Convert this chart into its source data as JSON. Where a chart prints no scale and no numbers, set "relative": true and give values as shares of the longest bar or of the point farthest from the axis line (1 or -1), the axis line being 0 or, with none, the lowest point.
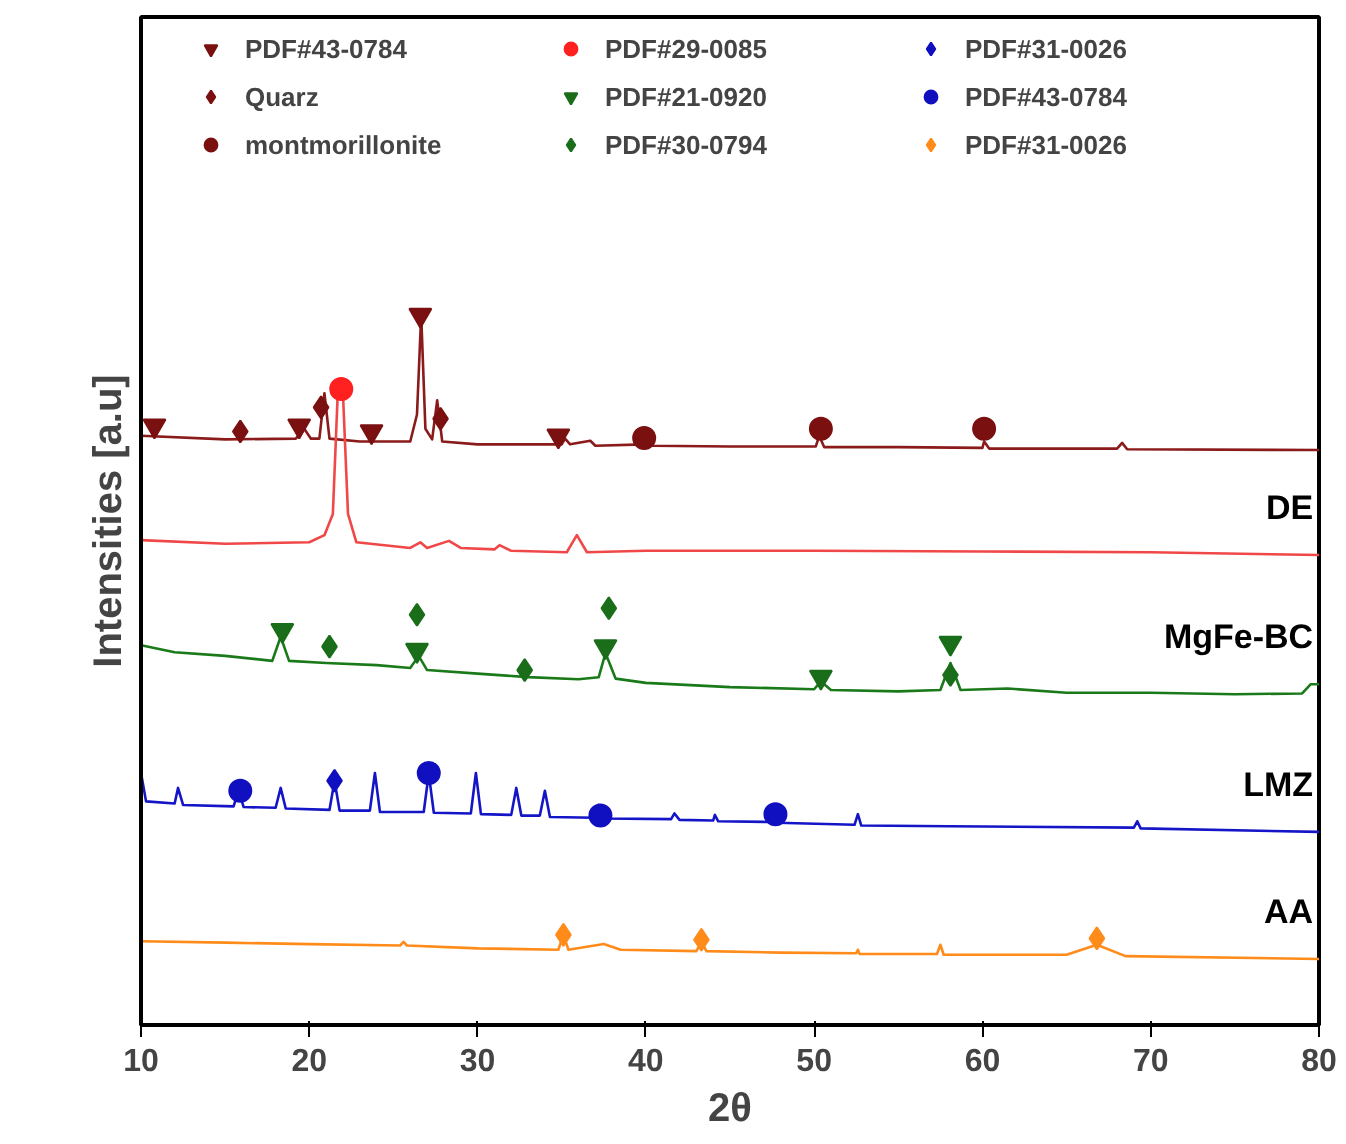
{
  "chart_data": {
    "type": "line",
    "relative": true,
    "xlabel": "2θ",
    "ylabel": "Intensities [a.u]",
    "xlim": [
      10,
      80
    ],
    "xticks": [
      10,
      20,
      30,
      40,
      50,
      60,
      70,
      80
    ],
    "grid": false,
    "legend": "top",
    "series": [
      {
        "color": "#8b1a1a",
        "x": [
          10,
          15,
          19.2,
          19.7,
          20.1,
          20.6,
          20.9,
          21.2,
          23,
          26,
          26.4,
          26.65,
          26.9,
          27.3,
          27.6,
          27.9,
          30,
          35,
          35.2,
          35.5,
          36.7,
          37,
          39.9,
          40.1,
          40.4,
          45,
          50.1,
          50.3,
          50.6,
          55,
          60,
          60.1,
          60.4,
          62,
          68,
          68.3,
          68.6,
          80
        ],
        "values": [
          0.83,
          0.825,
          0.826,
          0.84,
          0.826,
          0.826,
          0.89,
          0.826,
          0.822,
          0.822,
          0.86,
          1.0,
          0.84,
          0.825,
          0.88,
          0.822,
          0.818,
          0.818,
          0.826,
          0.818,
          0.823,
          0.816,
          0.818,
          0.835,
          0.816,
          0.815,
          0.815,
          0.83,
          0.814,
          0.814,
          0.813,
          0.822,
          0.812,
          0.812,
          0.812,
          0.82,
          0.811,
          0.81
        ]
      },
      {
        "name": "DE",
        "color": "#f04848",
        "x": [
          10,
          15,
          20,
          20.9,
          21.4,
          21.7,
          22.0,
          22.3,
          22.8,
          26,
          26.6,
          27,
          28.3,
          29,
          31,
          31.3,
          32,
          35.3,
          35.9,
          36.5,
          40,
          45,
          50,
          60,
          70,
          80
        ],
        "values": [
          0.683,
          0.678,
          0.68,
          0.69,
          0.72,
          0.895,
          0.89,
          0.72,
          0.68,
          0.672,
          0.68,
          0.672,
          0.682,
          0.672,
          0.67,
          0.676,
          0.668,
          0.666,
          0.69,
          0.666,
          0.668,
          0.668,
          0.668,
          0.667,
          0.666,
          0.662
        ]
      },
      {
        "name": "MgFe-BC",
        "color": "#1a7a1a",
        "x": [
          10,
          12,
          15,
          17.8,
          18.3,
          18.8,
          21,
          24,
          26,
          26.5,
          27,
          30,
          33,
          36,
          37.2,
          37.6,
          38.2,
          40,
          45,
          50,
          50.4,
          51,
          55,
          57.5,
          58.1,
          58.7,
          61.5,
          65,
          70,
          75,
          79,
          79.5,
          80
        ],
        "values": [
          0.535,
          0.525,
          0.52,
          0.513,
          0.547,
          0.513,
          0.51,
          0.507,
          0.503,
          0.52,
          0.5,
          0.495,
          0.49,
          0.487,
          0.49,
          0.524,
          0.488,
          0.482,
          0.476,
          0.473,
          0.484,
          0.472,
          0.47,
          0.472,
          0.51,
          0.472,
          0.474,
          0.468,
          0.468,
          0.466,
          0.467,
          0.48,
          0.48
        ]
      },
      {
        "name": "LMZ",
        "color": "#1515c8",
        "x": [
          10,
          10.3,
          12,
          12.2,
          12.5,
          15.5,
          15.8,
          16.1,
          18,
          18.3,
          18.6,
          21.2,
          21.5,
          21.8,
          23.6,
          23.9,
          24.2,
          26.8,
          27.1,
          27.4,
          29.6,
          29.9,
          30.2,
          32,
          32.3,
          32.6,
          33.7,
          34,
          34.3,
          37,
          37.2,
          37.5,
          41.5,
          41.7,
          42,
          44,
          44.1,
          44.3,
          47.4,
          47.6,
          47.8,
          52.4,
          52.6,
          52.8,
          58,
          69,
          69.2,
          69.4,
          80
        ],
        "values": [
          0.355,
          0.315,
          0.312,
          0.334,
          0.31,
          0.308,
          0.33,
          0.307,
          0.306,
          0.334,
          0.305,
          0.303,
          0.344,
          0.302,
          0.302,
          0.355,
          0.3,
          0.3,
          0.354,
          0.299,
          0.298,
          0.355,
          0.297,
          0.296,
          0.334,
          0.295,
          0.295,
          0.33,
          0.293,
          0.292,
          0.31,
          0.291,
          0.29,
          0.298,
          0.289,
          0.288,
          0.296,
          0.287,
          0.286,
          0.298,
          0.285,
          0.282,
          0.297,
          0.281,
          0.28,
          0.278,
          0.287,
          0.277,
          0.272
        ]
      },
      {
        "name": "AA",
        "color": "#ff8c1a",
        "x": [
          10,
          15,
          20,
          25.4,
          25.6,
          25.8,
          30,
          34.8,
          35.1,
          35.4,
          37.5,
          38.5,
          43,
          43.3,
          43.6,
          48,
          52.5,
          52.6,
          52.7,
          57.3,
          57.5,
          57.7,
          65,
          66.8,
          68.5,
          80
        ],
        "values": [
          0.118,
          0.116,
          0.114,
          0.112,
          0.117,
          0.112,
          0.108,
          0.106,
          0.127,
          0.106,
          0.114,
          0.106,
          0.104,
          0.117,
          0.104,
          0.102,
          0.101,
          0.106,
          0.1,
          0.1,
          0.113,
          0.099,
          0.099,
          0.113,
          0.097,
          0.093
        ]
      },
      {
        "type": "scatter",
        "marker": "triangle",
        "name": "PDF#43-0784",
        "color": "#7b1010",
        "x": [
          10.8,
          19.4,
          23.7,
          26.6,
          34.8
        ],
        "values": [
          0.844,
          0.844,
          0.836,
          1.0,
          0.83
        ]
      },
      {
        "type": "scatter",
        "marker": "diamond",
        "name": "Quarz",
        "color": "#7b1010",
        "x": [
          15.9,
          20.7,
          27.8
        ],
        "values": [
          0.836,
          0.87,
          0.854
        ]
      },
      {
        "type": "scatter",
        "marker": "circle",
        "name": "montmorillonite",
        "color": "#7b1010",
        "x": [
          39.9,
          50.4,
          60.1
        ],
        "values": [
          0.827,
          0.84,
          0.84
        ]
      },
      {
        "type": "scatter",
        "marker": "circle",
        "name": "PDF#29-0085",
        "color": "#ff2020",
        "x": [
          21.9
        ],
        "values": [
          0.896
        ]
      },
      {
        "type": "scatter",
        "marker": "triangle",
        "name": "PDF#21-0920",
        "color": "#1a6e1a",
        "x": [
          18.4,
          26.4,
          37.6,
          50.4,
          58.1
        ],
        "values": [
          0.556,
          0.528,
          0.533,
          0.49,
          0.538
        ]
      },
      {
        "type": "scatter",
        "marker": "diamond",
        "name": "PDF#30-0794",
        "color": "#1a6e1a",
        "x": [
          21.2,
          26.4,
          32.8,
          37.8,
          58.1
        ],
        "values": [
          0.533,
          0.578,
          0.5,
          0.587,
          0.493
        ]
      },
      {
        "type": "scatter",
        "marker": "diamond",
        "name": "PDF#31-0026",
        "color": "#1010c0",
        "x": [
          21.5
        ],
        "values": [
          0.344
        ]
      },
      {
        "type": "scatter",
        "marker": "circle",
        "name": "PDF#43-0784",
        "color": "#1010c0",
        "x": [
          15.9,
          27.1,
          37.3,
          47.7
        ],
        "values": [
          0.33,
          0.355,
          0.295,
          0.297
        ]
      },
      {
        "type": "scatter",
        "marker": "diamond",
        "name": "PDF#31-0026",
        "color": "#ff8c1a",
        "x": [
          35.1,
          43.3,
          66.8
        ],
        "values": [
          0.127,
          0.12,
          0.122
        ]
      }
    ]
  }
}
